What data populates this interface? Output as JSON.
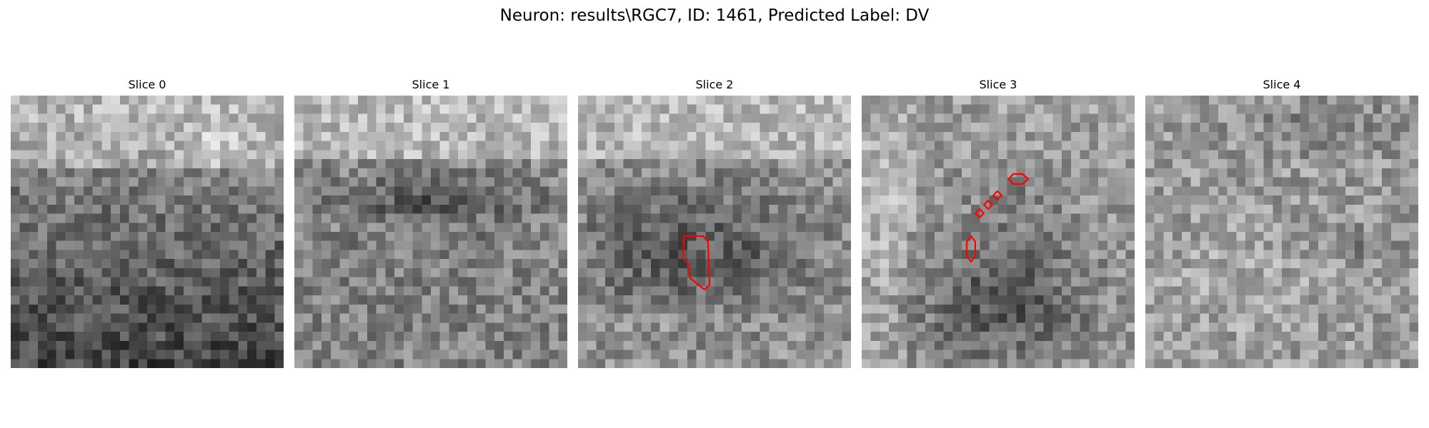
{
  "figure": {
    "suptitle": "Neuron: results\\RGC7, ID: 1461, Predicted Label: DV"
  },
  "panels": [
    {
      "title": "Slice 0"
    },
    {
      "title": "Slice 1"
    },
    {
      "title": "Slice 2"
    },
    {
      "title": "Slice 3"
    },
    {
      "title": "Slice 4"
    }
  ],
  "colors": {
    "contour": "#ff0000",
    "colormap": "gray"
  }
}
